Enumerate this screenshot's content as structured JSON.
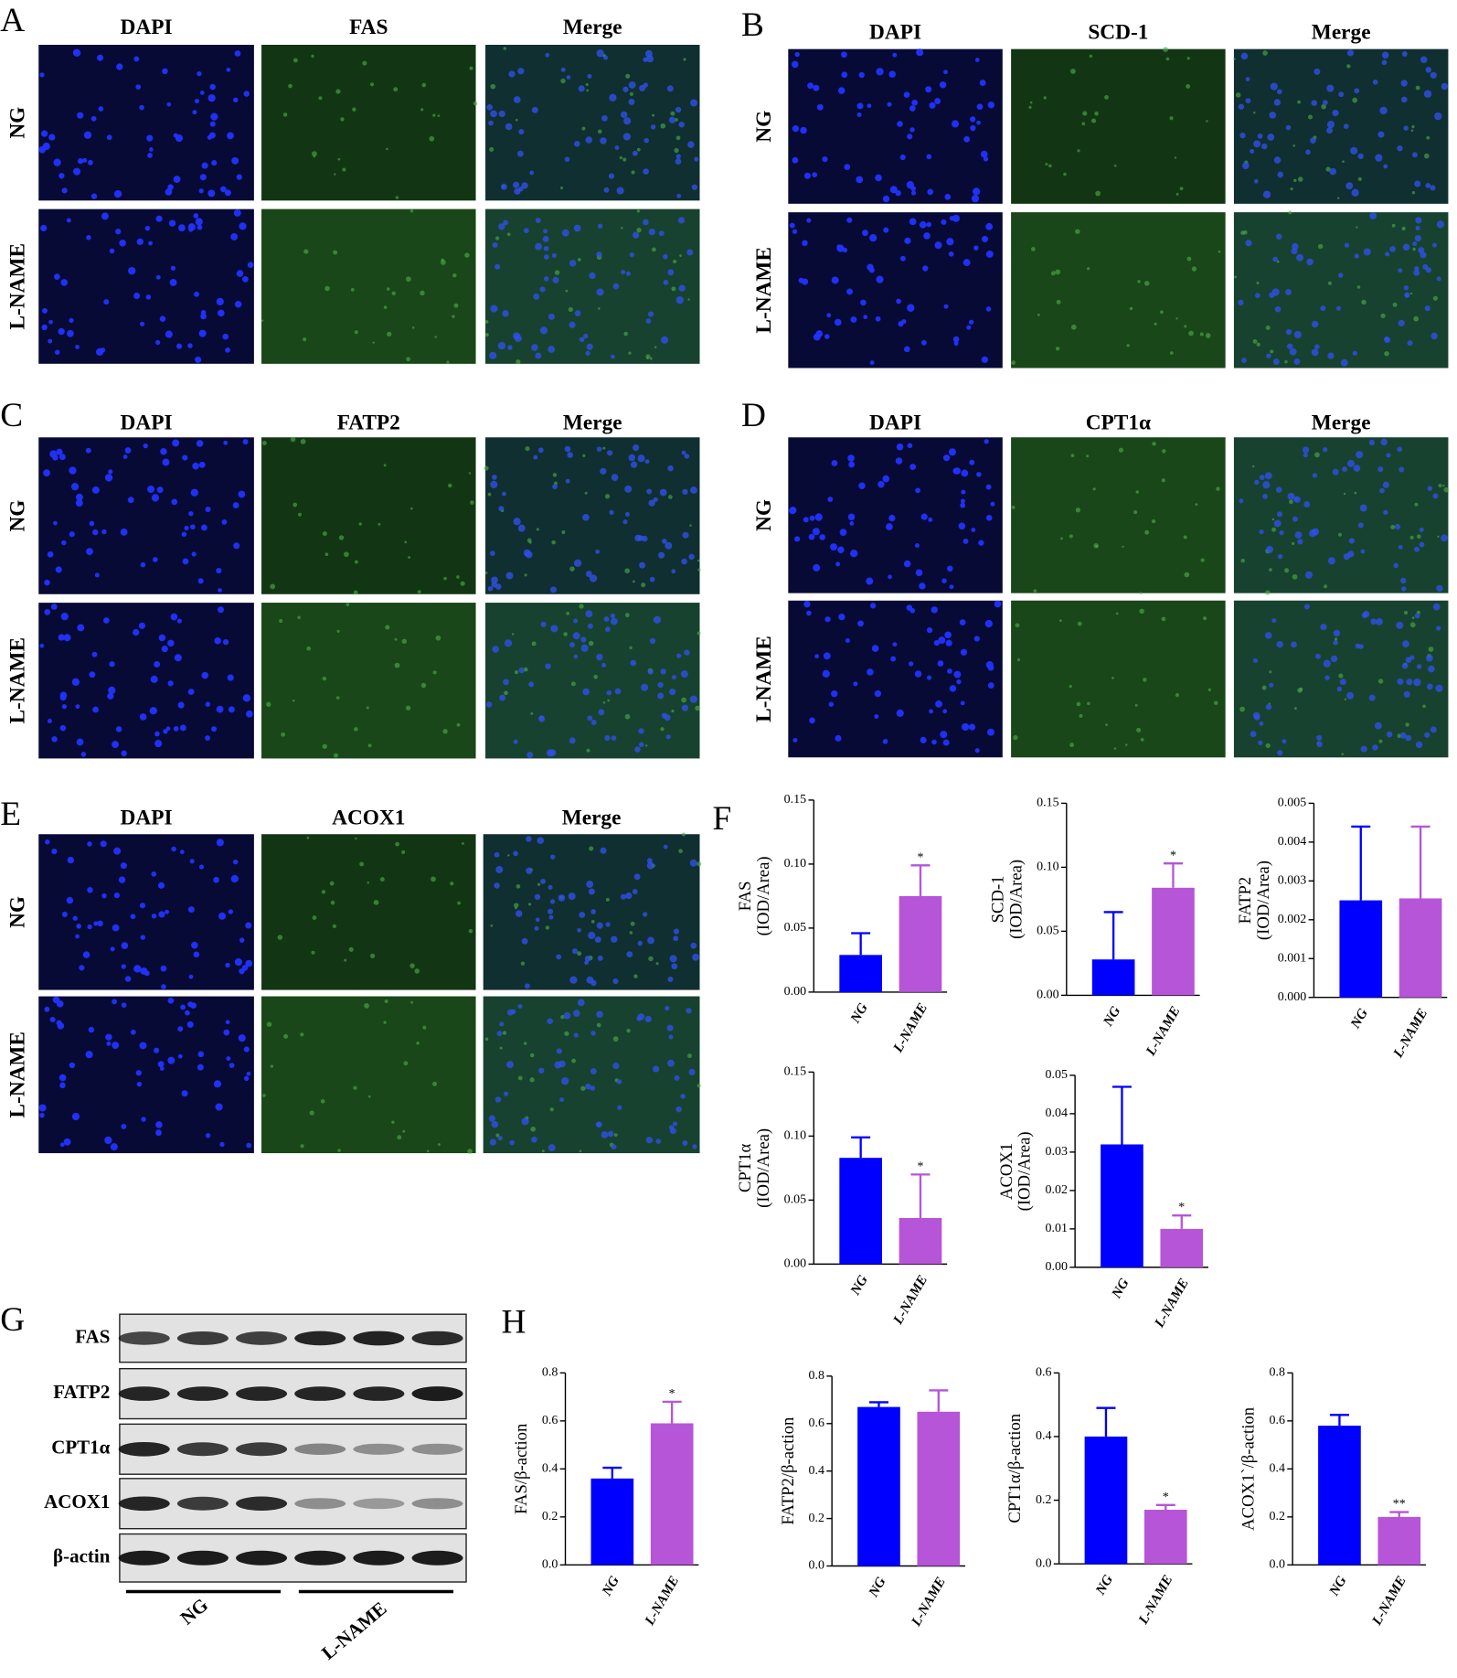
{
  "panels": [
    {
      "letter": "A",
      "columns": [
        "DAPI",
        "FAS",
        "Merge"
      ],
      "rows": [
        "NG",
        "L-NAME"
      ]
    },
    {
      "letter": "B",
      "columns": [
        "DAPI",
        "SCD-1",
        "Merge"
      ],
      "rows": [
        "NG",
        "L-NAME"
      ]
    },
    {
      "letter": "C",
      "columns": [
        "DAPI",
        "FATP2",
        "Merge"
      ],
      "rows": [
        "NG",
        "L-NAME"
      ]
    },
    {
      "letter": "D",
      "columns": [
        "DAPI",
        "CPT1α",
        "Merge"
      ],
      "rows": [
        "NG",
        "L-NAME"
      ]
    },
    {
      "letter": "E",
      "columns": [
        "DAPI",
        "ACOX1",
        "Merge"
      ],
      "rows": [
        "NG",
        "L-NAME"
      ]
    }
  ],
  "chart_groups": [
    {
      "letter": "F"
    },
    {
      "letter": "H"
    }
  ],
  "blot": {
    "letter": "G",
    "rows": [
      "FAS",
      "FATP2",
      "CPT1α",
      "ACOX1",
      "β-actin"
    ],
    "groups": [
      "NG",
      "L-NAME"
    ]
  },
  "chart_data": [
    {
      "type": "bar",
      "ylabel": [
        "FAS",
        "(IOD/Area)"
      ],
      "categories": [
        "NG",
        "L-NAME"
      ],
      "values": [
        0.029,
        0.075
      ],
      "errors": [
        0.017,
        0.024
      ],
      "colors": [
        "#0000ff",
        "#b655d8"
      ],
      "annotations": [
        null,
        "*"
      ],
      "ylim": [
        0,
        0.15
      ],
      "yticks": [
        {
          "value": 0,
          "label": "0.00"
        },
        0.05,
        {
          "value": 0.1,
          "label": "0.10"
        },
        0.15
      ]
    },
    {
      "type": "bar",
      "ylabel": [
        "SCD-1",
        "(IOD/Area)"
      ],
      "categories": [
        "NG",
        "L-NAME"
      ],
      "values": [
        0.028,
        0.084
      ],
      "errors": [
        0.037,
        0.019
      ],
      "colors": [
        "#0000ff",
        "#b655d8"
      ],
      "annotations": [
        null,
        "*"
      ],
      "ylim": [
        0,
        0.15
      ],
      "yticks": [
        {
          "value": 0,
          "label": "0.00"
        },
        0.05,
        {
          "value": 0.1,
          "label": "0.10"
        },
        0.15
      ]
    },
    {
      "type": "bar",
      "ylabel": [
        "FATP2",
        "(IOD/Area)"
      ],
      "categories": [
        "NG",
        "L-NAME"
      ],
      "values": [
        0.0025,
        0.00255
      ],
      "errors": [
        0.0019,
        0.00185
      ],
      "colors": [
        "#0000ff",
        "#b655d8"
      ],
      "annotations": [
        null,
        null
      ],
      "ylim": [
        0,
        0.005
      ],
      "yticks": [
        {
          "value": 0,
          "label": "0.000"
        },
        0.001,
        0.002,
        0.003,
        0.004,
        0.005
      ]
    },
    {
      "type": "bar",
      "ylabel": [
        "CPT1α",
        "(IOD/Area)"
      ],
      "categories": [
        "NG",
        "L-NAME"
      ],
      "values": [
        0.083,
        0.036
      ],
      "errors": [
        0.016,
        0.034
      ],
      "colors": [
        "#0000ff",
        "#b655d8"
      ],
      "annotations": [
        null,
        "*"
      ],
      "ylim": [
        0,
        0.15
      ],
      "yticks": [
        {
          "value": 0,
          "label": "0.00"
        },
        0.05,
        {
          "value": 0.1,
          "label": "0.10"
        },
        0.15
      ]
    },
    {
      "type": "bar",
      "ylabel": [
        "ACOX1",
        "(IOD/Area)"
      ],
      "categories": [
        "NG",
        "L-NAME"
      ],
      "values": [
        0.032,
        0.01
      ],
      "errors": [
        0.015,
        0.0035
      ],
      "colors": [
        "#0000ff",
        "#b655d8"
      ],
      "annotations": [
        null,
        "*"
      ],
      "ylim": [
        0,
        0.05
      ],
      "yticks": [
        {
          "value": 0,
          "label": "0.00"
        },
        0.01,
        0.02,
        0.03,
        0.04,
        0.05
      ]
    },
    {
      "type": "bar",
      "ylabel": [
        "FAS/β-action"
      ],
      "categories": [
        "NG",
        "L-NAME"
      ],
      "values": [
        0.36,
        0.59
      ],
      "errors": [
        0.045,
        0.09
      ],
      "colors": [
        "#0000ff",
        "#b655d8"
      ],
      "annotations": [
        null,
        "*"
      ],
      "ylim": [
        0,
        0.8
      ],
      "yticks": [
        {
          "value": 0,
          "label": "0.0"
        },
        0.2,
        0.4,
        0.6,
        0.8
      ]
    },
    {
      "type": "bar",
      "ylabel": [
        "FATP2/β-action"
      ],
      "categories": [
        "NG",
        "L-NAME"
      ],
      "values": [
        0.67,
        0.65
      ],
      "errors": [
        0.02,
        0.09
      ],
      "colors": [
        "#0000ff",
        "#b655d8"
      ],
      "annotations": [
        null,
        null
      ],
      "ylim": [
        0,
        0.8
      ],
      "yticks": [
        {
          "value": 0,
          "label": "0.0"
        },
        0.2,
        0.4,
        0.6,
        0.8
      ]
    },
    {
      "type": "bar",
      "ylabel": [
        "CPT1α/β-action"
      ],
      "categories": [
        "NG",
        "L-NAME"
      ],
      "values": [
        0.4,
        0.17
      ],
      "errors": [
        0.09,
        0.015
      ],
      "colors": [
        "#0000ff",
        "#b655d8"
      ],
      "annotations": [
        null,
        "*"
      ],
      "ylim": [
        0,
        0.6
      ],
      "yticks": [
        {
          "value": 0,
          "label": "0.0"
        },
        0.2,
        0.4,
        0.6
      ]
    },
    {
      "type": "bar",
      "ylabel": [
        "ACOX1`/β-action"
      ],
      "categories": [
        "NG",
        "L-NAME"
      ],
      "values": [
        0.58,
        0.2
      ],
      "errors": [
        0.045,
        0.02
      ],
      "colors": [
        "#0000ff",
        "#b655d8"
      ],
      "annotations": [
        null,
        "**"
      ],
      "ylim": [
        0,
        0.8
      ],
      "yticks": [
        {
          "value": 0,
          "label": "0.0"
        },
        0.2,
        0.4,
        0.6,
        0.8
      ]
    }
  ]
}
